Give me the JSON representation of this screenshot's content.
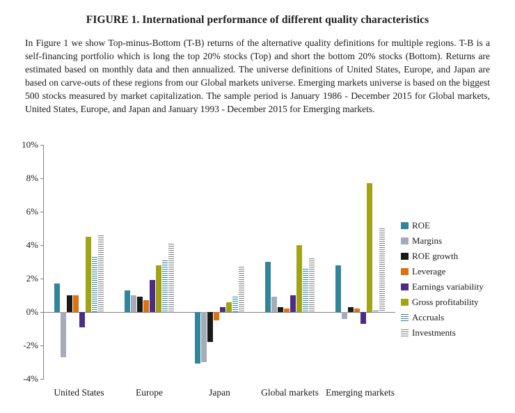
{
  "figure": {
    "title": "FIGURE 1. International performance of different quality characteristics",
    "caption": "In Figure 1 we show Top-minus-Bottom (T-B) returns of the alternative quality definitions for multiple regions. T-B is a self-financing portfolio which is long the top 20% stocks (Top) and short the bottom 20% stocks (Bottom). Returns are estimated based on monthly data and then annualized. The universe definitions of United States, Europe, and Japan are based on carve-outs of these regions from our Global markets universe. Emerging markets universe is based on the biggest 500 stocks measured by market capitalization. The sample period is January 1986 - December 2015 for Global markets, United States, Europe, and Japan and January 1993 - December 2015 for Emerging markets."
  },
  "chart_data": {
    "type": "bar",
    "title": "",
    "xlabel": "",
    "ylabel": "",
    "ylim": [
      -4,
      10
    ],
    "yticks": [
      10,
      8,
      6,
      4,
      2,
      0,
      -2,
      -4
    ],
    "ytick_suffix": "%",
    "grid": false,
    "legend_position": "right",
    "axis_color": "#7f7f7f",
    "categories": [
      "United States",
      "Europe",
      "Japan",
      "Global markets",
      "Emerging markets"
    ],
    "series": [
      {
        "name": "ROE",
        "color": "#31859b",
        "pattern": "solid",
        "values": [
          1.7,
          1.3,
          -3.1,
          3.0,
          2.8
        ]
      },
      {
        "name": "Margins",
        "color": "#a5acb8",
        "pattern": "solid",
        "values": [
          -2.7,
          1.0,
          -3.0,
          0.9,
          -0.4
        ]
      },
      {
        "name": "ROE growth",
        "color": "#1a1a1a",
        "pattern": "solid",
        "values": [
          1.0,
          0.9,
          -1.8,
          0.3,
          0.3
        ]
      },
      {
        "name": "Leverage",
        "color": "#d9720f",
        "pattern": "solid",
        "values": [
          1.0,
          0.7,
          -0.5,
          0.2,
          0.2
        ]
      },
      {
        "name": "Earnings variability",
        "color": "#4b2d82",
        "pattern": "solid",
        "values": [
          -0.9,
          1.9,
          0.3,
          1.0,
          -0.7
        ]
      },
      {
        "name": "Gross profitability",
        "color": "#a3a413",
        "pattern": "solid",
        "values": [
          4.5,
          2.8,
          0.6,
          4.0,
          7.7
        ]
      },
      {
        "name": "Accruals",
        "color": "#31859b",
        "pattern": "hlines",
        "values": [
          3.3,
          3.1,
          0.9,
          2.6,
          0.1
        ]
      },
      {
        "name": "Investments",
        "color": "#7f7f7f",
        "pattern": "hlines",
        "values": [
          4.6,
          4.1,
          2.7,
          3.2,
          5.0
        ]
      }
    ]
  }
}
